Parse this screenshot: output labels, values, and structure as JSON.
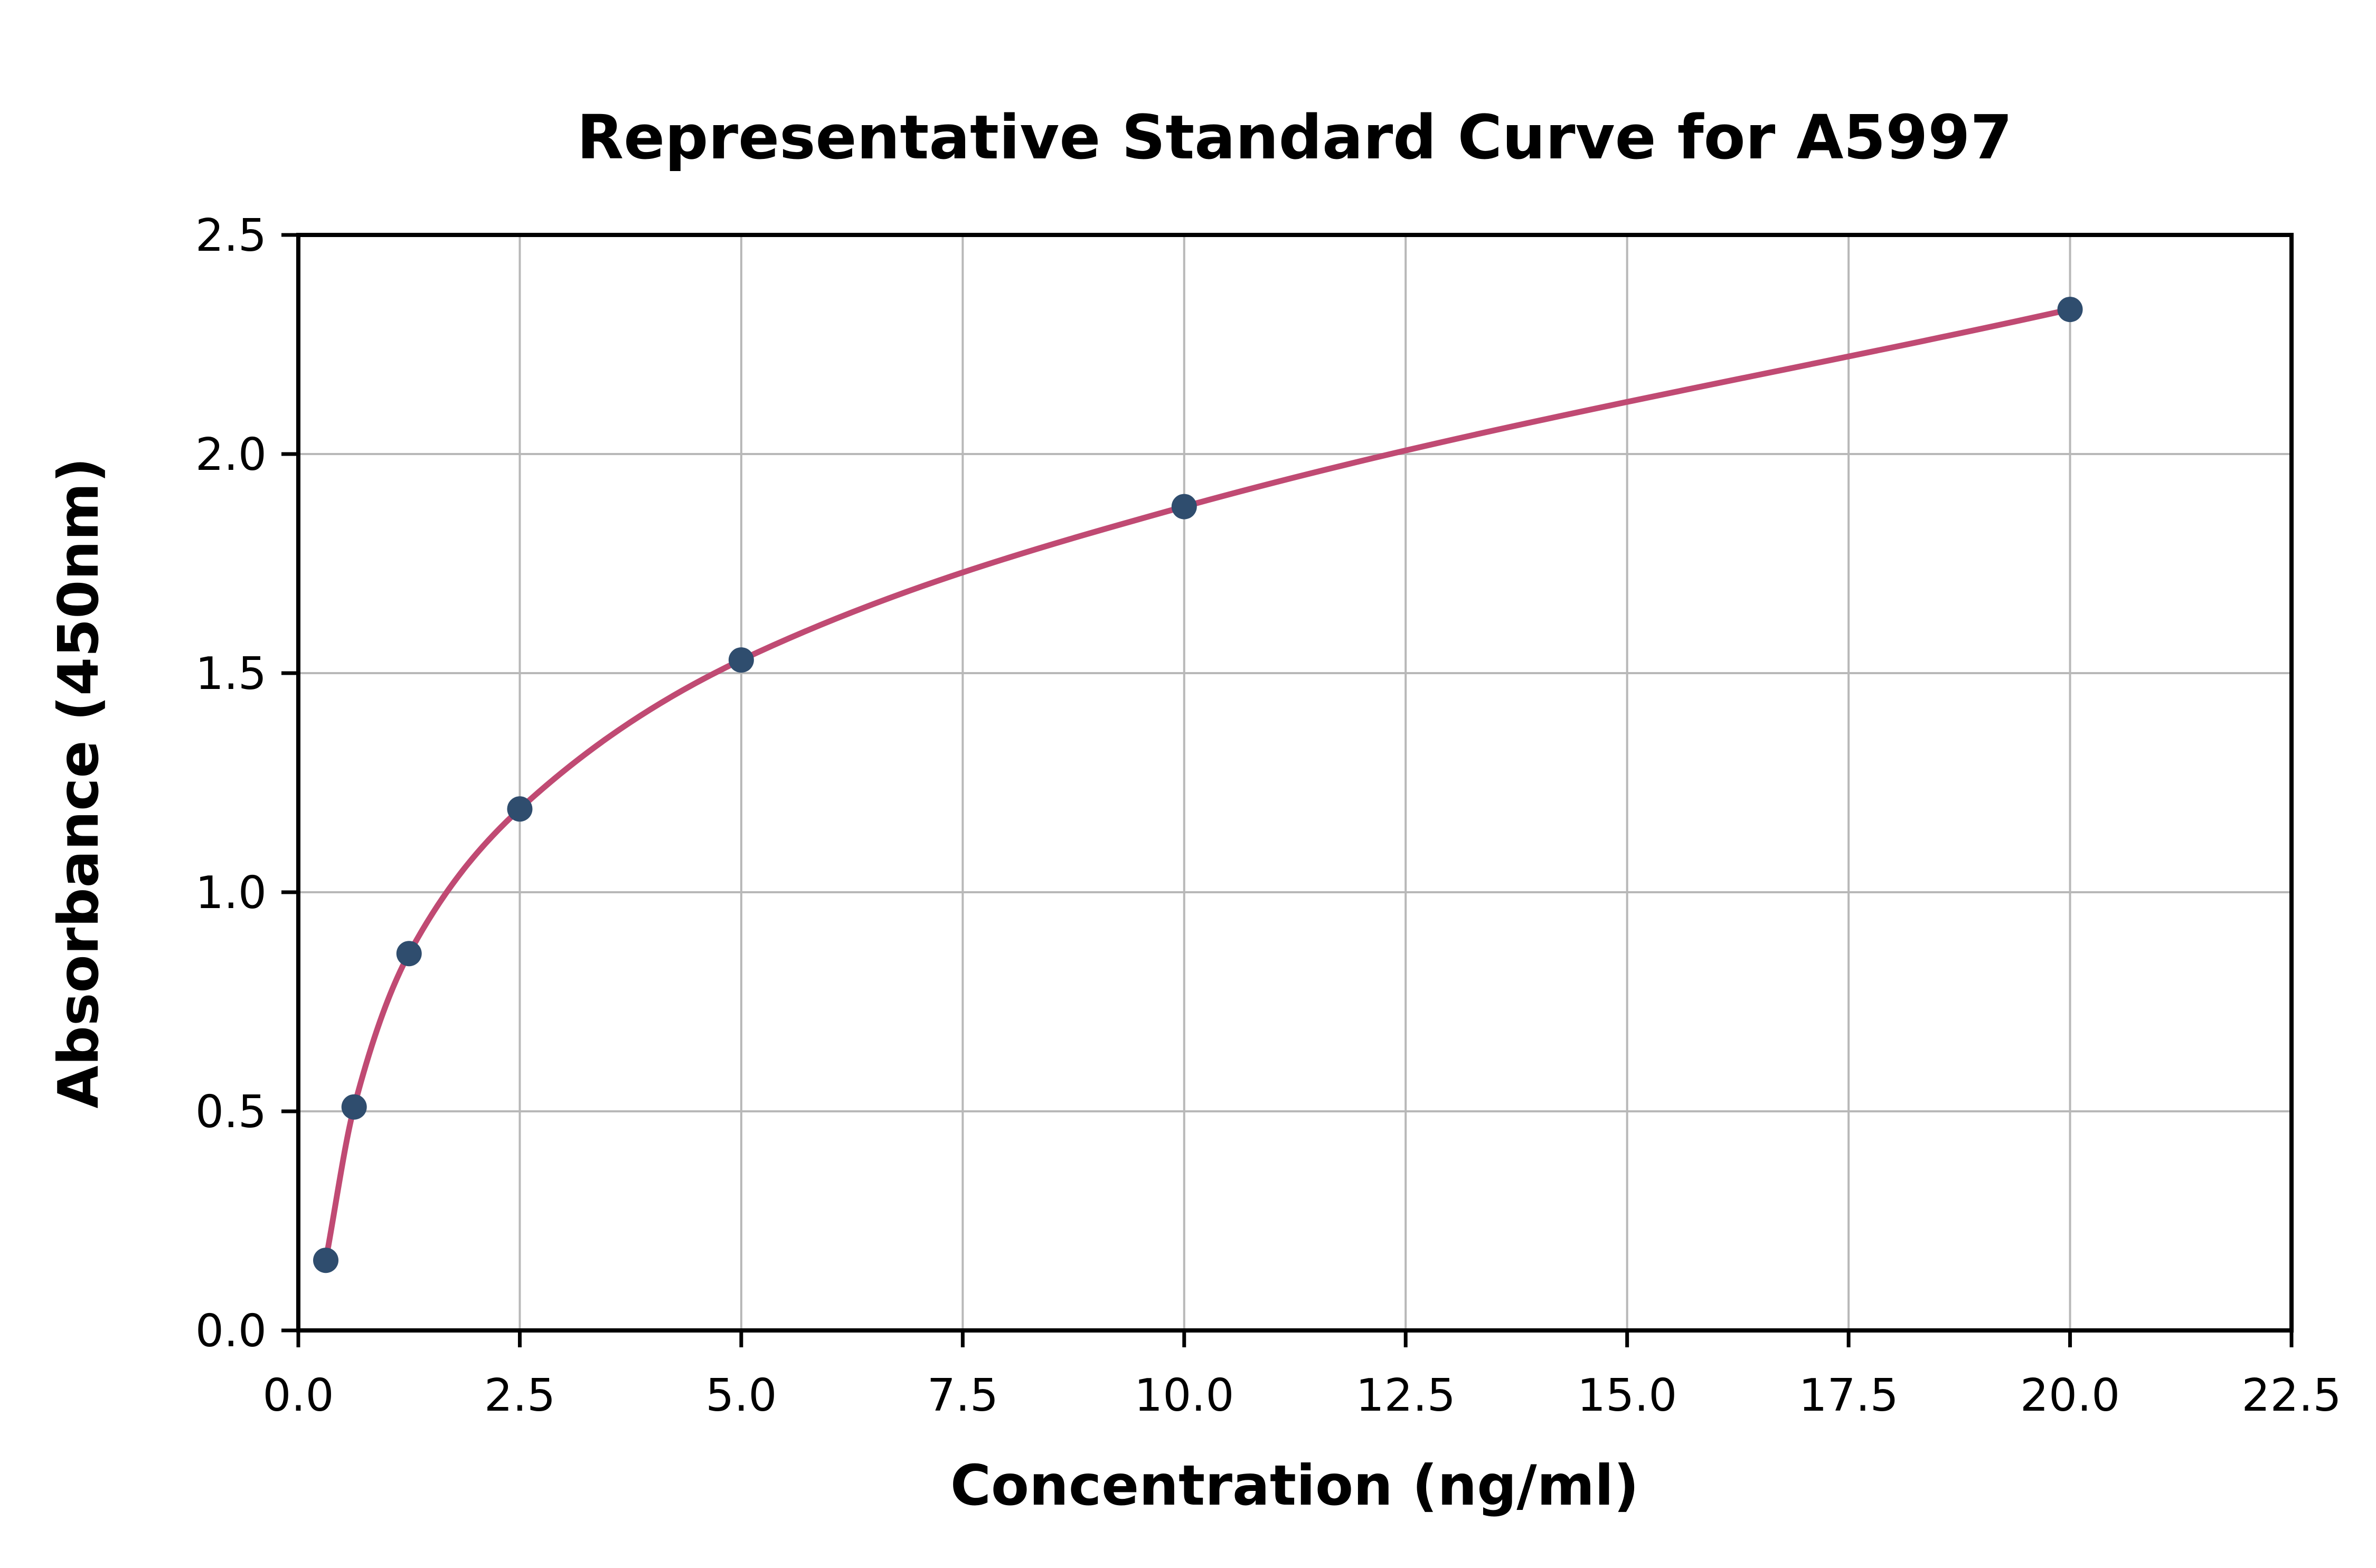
{
  "figure": {
    "background": "#ffffff"
  },
  "chart_data": {
    "type": "scatter",
    "title": "Representative Standard Curve for A5997",
    "xlabel": "Concentration (ng/ml)",
    "ylabel": "Absorbance (450nm)",
    "xlim": [
      0,
      22.5
    ],
    "ylim": [
      0,
      2.5
    ],
    "grid": true,
    "grid_color": "#b8b8b8",
    "spine_color": "#000000",
    "x_ticks": [
      0,
      2.5,
      5,
      7.5,
      10,
      12.5,
      15,
      17.5,
      20,
      22.5
    ],
    "x_ticklabels": [
      "0.0",
      "2.5",
      "5.0",
      "7.5",
      "10.0",
      "12.5",
      "15.0",
      "17.5",
      "20.0",
      "22.5"
    ],
    "y_ticks": [
      0,
      0.5,
      1,
      1.5,
      2,
      2.5
    ],
    "y_ticklabels": [
      "0.0",
      "0.5",
      "1.0",
      "1.5",
      "2.0",
      "2.5"
    ],
    "series": [
      {
        "name": "standard-points",
        "type": "scatter",
        "color": "#2f4d6e",
        "marker_radius": 24,
        "points": [
          [
            0.31,
            0.16
          ],
          [
            0.63,
            0.51
          ],
          [
            1.25,
            0.86
          ],
          [
            2.5,
            1.19
          ],
          [
            5.0,
            1.53
          ],
          [
            10.0,
            1.88
          ],
          [
            20.0,
            2.33
          ]
        ]
      },
      {
        "name": "fitted-curve",
        "type": "line",
        "color": "#c04a73",
        "line_width": 11,
        "points": [
          [
            0.31,
            0.16
          ],
          [
            0.63,
            0.51
          ],
          [
            1.25,
            0.86
          ],
          [
            2.5,
            1.19
          ],
          [
            5.0,
            1.53
          ],
          [
            10.0,
            1.88
          ],
          [
            20.0,
            2.33
          ]
        ]
      }
    ]
  }
}
